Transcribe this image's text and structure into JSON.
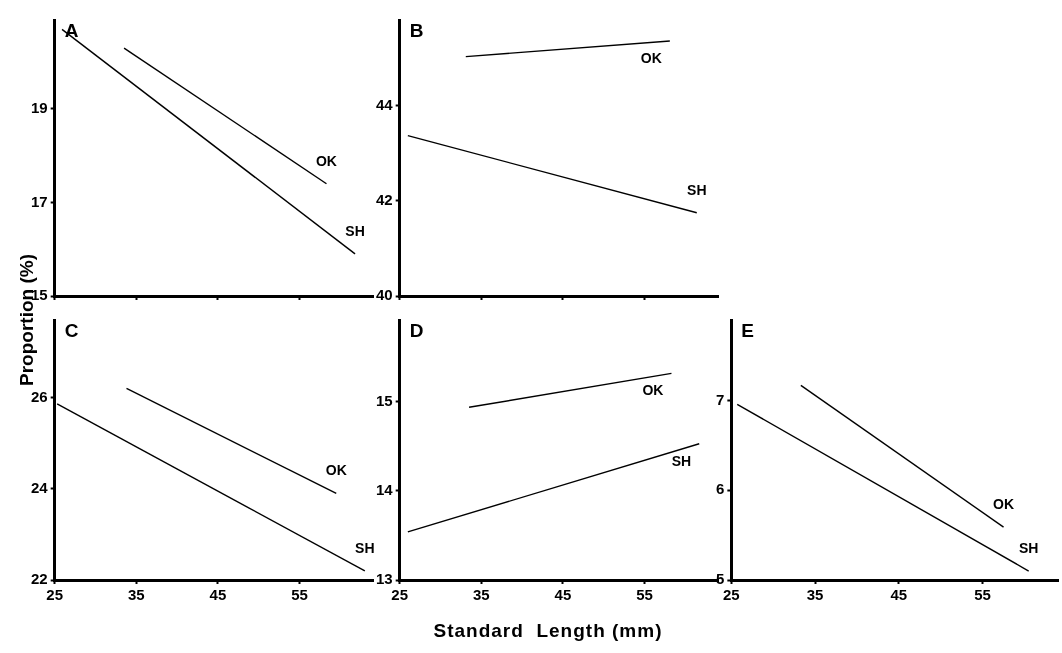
{
  "chart_data": [
    {
      "type": "line",
      "title": "A",
      "ylabel": "Proportion (%)",
      "xlim": [
        25,
        64
      ],
      "xticks": [
        25,
        35,
        45,
        55
      ],
      "ylim": [
        15,
        20.9
      ],
      "yticks": [
        15,
        17,
        19
      ],
      "tick_labels": "y",
      "grid": false,
      "legend": false,
      "marker": "none",
      "line_style": "solid",
      "series": [
        {
          "name": "OK",
          "color": "#000000",
          "x": [
            33.5,
            58.3
          ],
          "values": [
            20.3,
            17.4
          ]
        },
        {
          "name": "SH",
          "color": "#000000",
          "x": [
            25.9,
            61.8
          ],
          "values": [
            20.7,
            15.9
          ]
        }
      ]
    },
    {
      "type": "line",
      "title": "B",
      "xlim": [
        25,
        64
      ],
      "xticks": [
        25,
        35,
        45,
        55
      ],
      "ylim": [
        40,
        45.8
      ],
      "yticks": [
        40,
        42,
        44
      ],
      "tick_labels": "y",
      "grid": false,
      "legend": false,
      "marker": "none",
      "line_style": "solid",
      "series": [
        {
          "name": "OK",
          "color": "#000000",
          "x": [
            33.1,
            58.1
          ],
          "values": [
            45.03,
            45.36
          ]
        },
        {
          "name": "SH",
          "color": "#000000",
          "x": [
            26,
            61.4
          ],
          "values": [
            43.37,
            41.75
          ]
        }
      ]
    },
    {
      "type": "line",
      "title": "C",
      "xlim": [
        25,
        64
      ],
      "xticks": [
        25,
        35,
        45,
        55
      ],
      "ylim": [
        22,
        27.7
      ],
      "yticks": [
        22,
        24,
        26
      ],
      "grid": false,
      "legend": false,
      "marker": "none",
      "line_style": "solid",
      "series": [
        {
          "name": "OK",
          "color": "#000000",
          "x": [
            33.8,
            59.5
          ],
          "values": [
            26.2,
            23.9
          ]
        },
        {
          "name": "SH",
          "color": "#000000",
          "x": [
            25.3,
            63
          ],
          "values": [
            25.86,
            22.2
          ]
        }
      ]
    },
    {
      "type": "line",
      "title": "D",
      "xlabel": "Standard  Length (mm)",
      "xlim": [
        25,
        64
      ],
      "xticks": [
        25,
        35,
        45,
        55
      ],
      "ylim": [
        13,
        15.92
      ],
      "yticks": [
        13,
        14,
        15
      ],
      "grid": false,
      "legend": false,
      "marker": "none",
      "line_style": "solid",
      "series": [
        {
          "name": "OK",
          "color": "#000000",
          "x": [
            33.5,
            58.3
          ],
          "values": [
            14.94,
            15.32
          ]
        },
        {
          "name": "SH",
          "color": "#000000",
          "x": [
            26,
            61.7
          ],
          "values": [
            13.54,
            14.53
          ]
        }
      ]
    },
    {
      "type": "line",
      "title": "E",
      "xlim": [
        25,
        64
      ],
      "xticks": [
        25,
        35,
        45,
        55
      ],
      "ylim": [
        5,
        7.9
      ],
      "yticks": [
        5,
        6,
        7
      ],
      "grid": false,
      "legend": false,
      "marker": "none",
      "line_style": "solid",
      "series": [
        {
          "name": "OK",
          "color": "#000000",
          "x": [
            33.3,
            57.5
          ],
          "values": [
            7.17,
            5.59
          ]
        },
        {
          "name": "SH",
          "color": "#000000",
          "x": [
            25.7,
            60.5
          ],
          "values": [
            6.96,
            5.1
          ]
        }
      ]
    }
  ]
}
